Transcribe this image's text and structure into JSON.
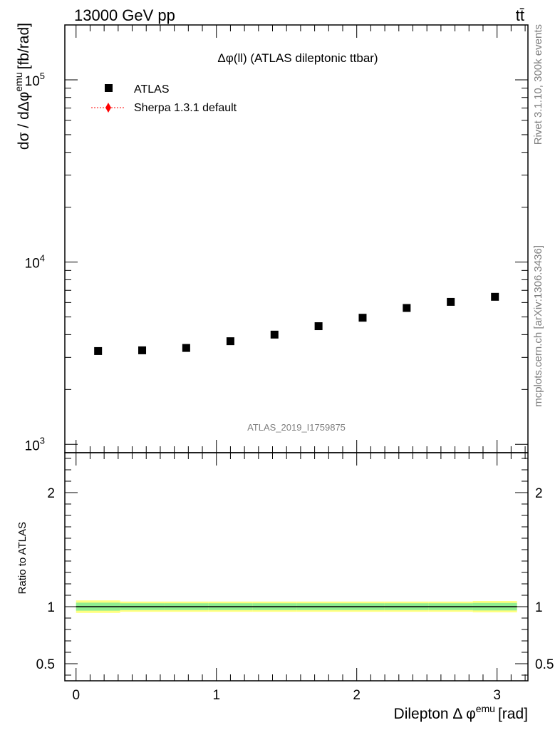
{
  "chart_data": [
    {
      "type": "scatter",
      "panel": "main",
      "header_left": "13000 GeV pp",
      "header_right": "tt̄",
      "title": "Δφ(ll) (ATLAS dileptonic ttbar)",
      "ylabel": "dσ / dΔφ",
      "ylabel_sup": "emu",
      "ylabel_unit": "[fb/rad]",
      "yscale": "log",
      "ylim": [
        900,
        200000
      ],
      "xlim": [
        -0.08,
        3.22
      ],
      "ytick_labels": [
        {
          "value": 1000,
          "base": "10",
          "exp": "3"
        },
        {
          "value": 10000,
          "base": "10",
          "exp": "4"
        },
        {
          "value": 100000,
          "base": "10",
          "exp": "5"
        }
      ],
      "legend": [
        {
          "label": "ATLAS",
          "marker": "square",
          "color": "#000000"
        },
        {
          "label": "Sherpa 1.3.1 default",
          "marker": "diamond",
          "color": "#ff0000"
        }
      ],
      "watermark": "ATLAS_2019_I1759875",
      "side_label_top": "Rivet 3.1.10,  300k events",
      "side_label_bottom": "mcplots.cern.ch [arXiv:1306.3436]",
      "series": [
        {
          "name": "ATLAS",
          "color": "#000000",
          "x": [
            0.157,
            0.471,
            0.785,
            1.1,
            1.414,
            1.728,
            2.042,
            2.356,
            2.67,
            2.985
          ],
          "y": [
            3250,
            3280,
            3380,
            3680,
            4000,
            4450,
            4950,
            5600,
            6050,
            6450
          ]
        }
      ]
    },
    {
      "type": "line",
      "panel": "ratio",
      "ylabel": "Ratio to ATLAS",
      "xlabel": "Dilepton Δ φ",
      "xlabel_sup": "emu",
      "xlabel_unit": "[rad]",
      "ylim": [
        0.35,
        2.35
      ],
      "xlim": [
        -0.08,
        3.22
      ],
      "yticks": [
        {
          "value": 0.5,
          "label": "0.5"
        },
        {
          "value": 1,
          "label": "1"
        },
        {
          "value": 2,
          "label": "2"
        }
      ],
      "xticks": [
        {
          "value": 0,
          "label": "0"
        },
        {
          "value": 1,
          "label": "1"
        },
        {
          "value": 2,
          "label": "2"
        },
        {
          "value": 3,
          "label": "3"
        }
      ],
      "reference_line": 1.0,
      "bin_edges": [
        0,
        0.314,
        0.628,
        0.942,
        1.257,
        1.571,
        1.885,
        2.199,
        2.513,
        2.827,
        3.142
      ],
      "band_total_half": [
        0.055,
        0.045,
        0.045,
        0.045,
        0.045,
        0.045,
        0.045,
        0.045,
        0.045,
        0.05
      ],
      "band_inner_half": [
        0.035,
        0.03,
        0.03,
        0.03,
        0.03,
        0.03,
        0.03,
        0.03,
        0.03,
        0.033
      ],
      "band_outer_color": "#ffff80",
      "band_inner_color": "#90ee90"
    }
  ]
}
